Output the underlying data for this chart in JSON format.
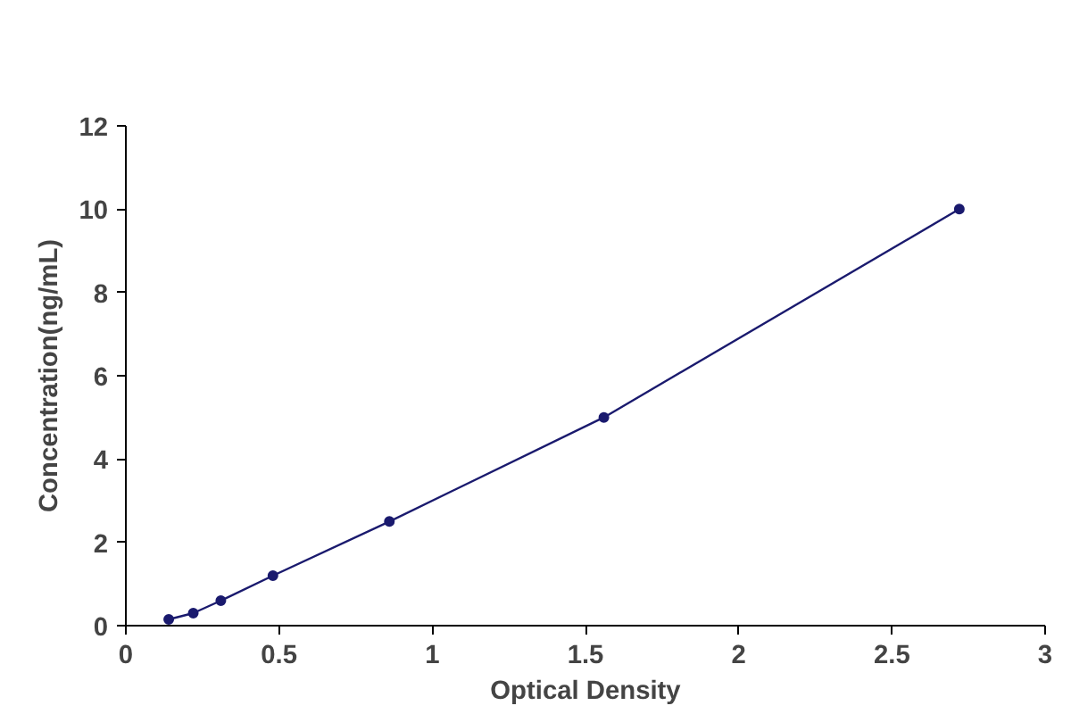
{
  "chart_data": {
    "type": "line",
    "xlabel": "Optical Density",
    "ylabel": "Concentration(ng/mL)",
    "x": [
      0.14,
      0.22,
      0.31,
      0.48,
      0.86,
      1.56,
      2.72
    ],
    "series": [
      {
        "color": "#1a1a6e",
        "values": [
          0.15,
          0.3,
          0.6,
          1.2,
          2.5,
          5,
          10
        ]
      }
    ],
    "marker": "circle",
    "line_style": "solid",
    "grid": false,
    "xlim": [
      0,
      3
    ],
    "ylim": [
      0,
      12
    ],
    "xticks": [
      0,
      0.5,
      1,
      1.5,
      2,
      2.5,
      3
    ],
    "yticks": [
      0,
      2,
      4,
      6,
      8,
      10,
      12
    ]
  }
}
